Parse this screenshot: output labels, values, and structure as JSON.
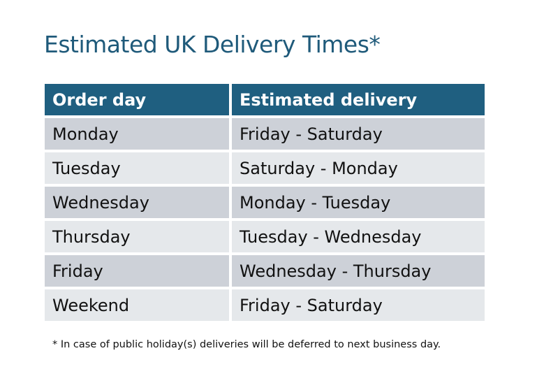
{
  "title": "Estimated UK Delivery Times*",
  "table": {
    "headers": [
      "Order day",
      "Estimated delivery"
    ],
    "rows": [
      [
        "Monday",
        "Friday - Saturday"
      ],
      [
        "Tuesday",
        "Saturday - Monday"
      ],
      [
        "Wednesday",
        "Monday - Tuesday"
      ],
      [
        "Thursday",
        "Tuesday - Wednesday"
      ],
      [
        "Friday",
        "Wednesday - Thursday"
      ],
      [
        "Weekend",
        "Friday - Saturday"
      ]
    ]
  },
  "footnote": "* In case of public holiday(s) deliveries will be deferred to next business day.",
  "colors": {
    "header": "#1f5f80",
    "title": "#1f5a7a",
    "row_odd": "#cdd1d8",
    "row_even": "#e5e8eb"
  }
}
